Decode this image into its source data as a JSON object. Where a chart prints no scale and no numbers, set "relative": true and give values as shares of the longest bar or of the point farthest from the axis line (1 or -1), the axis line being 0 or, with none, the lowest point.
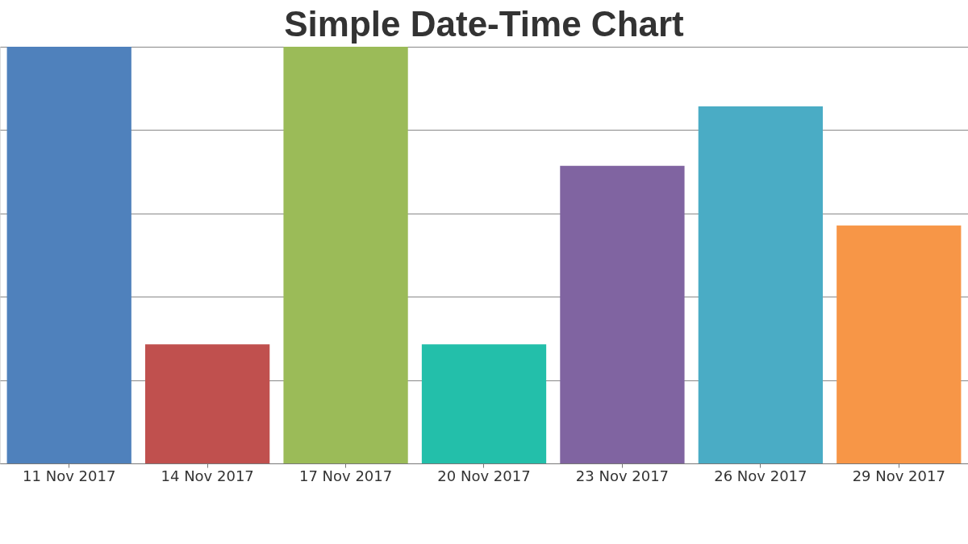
{
  "chart_data": {
    "type": "bar",
    "title": "Simple Date-Time Chart",
    "categories": [
      "11 Nov 2017",
      "14 Nov 2017",
      "17 Nov 2017",
      "20 Nov 2017",
      "23 Nov 2017",
      "26 Nov 2017",
      "29 Nov 2017"
    ],
    "values": [
      1,
      0.286,
      1,
      0.286,
      0.714,
      0.857,
      0.571
    ],
    "colors": [
      "#4f81bc",
      "#c0504e",
      "#9bbb58",
      "#23bfaa",
      "#8064a1",
      "#4aacc5",
      "#f79647"
    ],
    "relative": true,
    "grid": "y"
  }
}
